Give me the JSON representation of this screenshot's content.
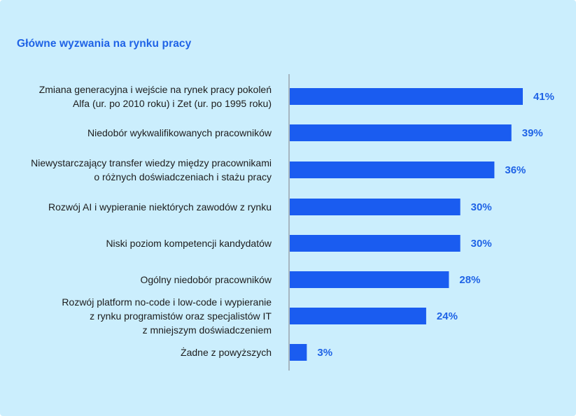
{
  "colors": {
    "background": "#cbeefd",
    "bar": "#1a5cf0",
    "title": "#1f63e6",
    "value_label": "#1f63e6",
    "axis": "#9aa3ad",
    "text": "#1c1c1c"
  },
  "chart_data": {
    "type": "bar",
    "orientation": "horizontal",
    "title": "Główne wyzwania na rynku pracy",
    "xlabel": "",
    "ylabel": "",
    "xlim": [
      0,
      41
    ],
    "grid": false,
    "legend": "none",
    "categories": [
      [
        "Zmiana generacyjna i wejście na rynek pracy pokoleń",
        "Alfa (ur. po 2010 roku) i Zet (ur. po 1995 roku)"
      ],
      [
        "Niedobór wykwalifikowanych pracowników"
      ],
      [
        "Niewystarczający transfer wiedzy między pracownikami",
        "o różnych doświadczeniach i stażu pracy"
      ],
      [
        "Rozwój AI i wypieranie niektórych zawodów z rynku"
      ],
      [
        "Niski poziom kompetencji kandydatów"
      ],
      [
        "Ogólny niedobór pracowników"
      ],
      [
        "Rozwój platform no-code i low-code i wypieranie",
        "z rynku programistów oraz specjalistów IT",
        "z mniejszym doświadczeniem"
      ],
      [
        "Żadne z powyższych"
      ]
    ],
    "values": [
      41,
      39,
      36,
      30,
      30,
      28,
      24,
      3
    ],
    "value_labels": [
      "41%",
      "39%",
      "36%",
      "30%",
      "30%",
      "28%",
      "24%",
      "3%"
    ]
  }
}
